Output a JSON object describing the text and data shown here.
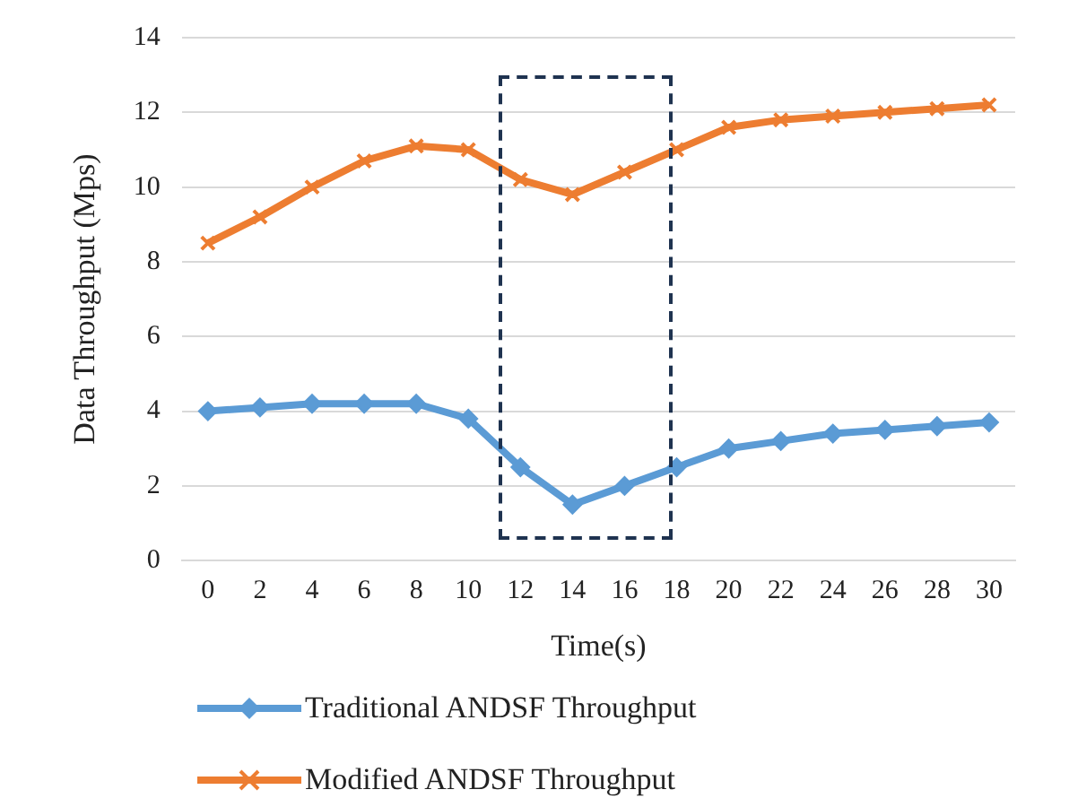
{
  "chart_data": {
    "type": "line",
    "xlabel": "Time(s)",
    "ylabel": "Data Throughput (Mps)",
    "x": [
      0,
      2,
      4,
      6,
      8,
      10,
      12,
      14,
      16,
      18,
      20,
      22,
      24,
      26,
      28,
      30
    ],
    "xlim": [
      -1,
      31
    ],
    "xticks": [
      0,
      2,
      4,
      6,
      8,
      10,
      12,
      14,
      16,
      18,
      20,
      22,
      24,
      26,
      28,
      30
    ],
    "series": [
      {
        "name": "Traditional ANDSF Throughput",
        "color": "#5b9bd5",
        "marker": "diamond",
        "values": [
          4.0,
          4.1,
          4.2,
          4.2,
          4.2,
          3.8,
          2.5,
          1.5,
          2.0,
          2.5,
          3.0,
          3.2,
          3.4,
          3.5,
          3.6,
          3.7
        ]
      },
      {
        "name": "Modified ANDSF Throughput",
        "color": "#ed7d31",
        "marker": "cross",
        "values": [
          8.5,
          9.2,
          10.0,
          10.7,
          11.1,
          11.0,
          10.2,
          9.8,
          10.4,
          11.0,
          11.6,
          11.8,
          11.9,
          12.0,
          12.1,
          12.2
        ]
      }
    ],
    "ylim": [
      0,
      14
    ],
    "yticks": [
      0,
      2,
      4,
      6,
      8,
      10,
      12,
      14
    ],
    "grid": "y",
    "legend": "bottom",
    "line_style": "solid"
  }
}
